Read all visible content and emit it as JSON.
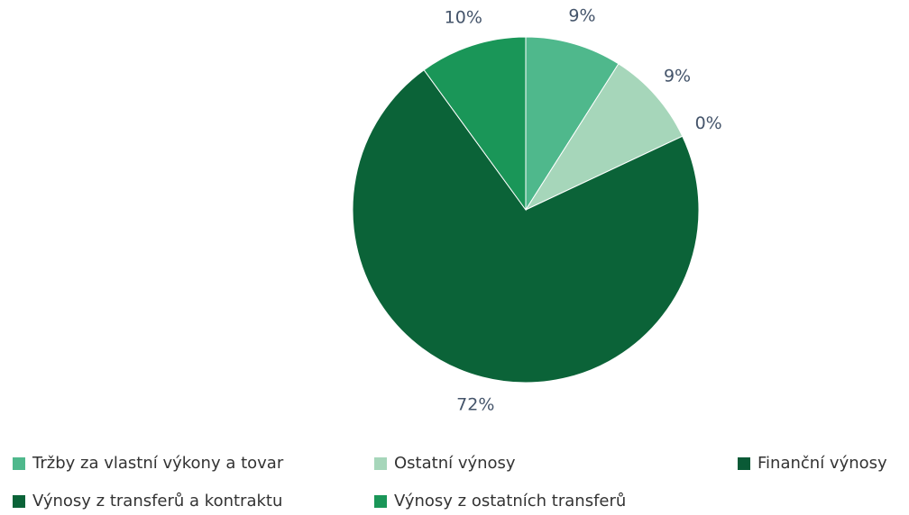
{
  "chart_data": {
    "type": "pie",
    "categories": [
      "Tržby za vlastní výkony a tovar",
      "Ostatní výnosy",
      "Finanční výnosy",
      "Výnosy z transferů a kontraktu",
      "Výnosy z ostatních transferů"
    ],
    "values": [
      9,
      9,
      0,
      72,
      10
    ],
    "value_labels": [
      "9%",
      "9%",
      "0%",
      "72%",
      "10%"
    ],
    "colors": [
      "#4fb88c",
      "#a6d6ba",
      "#0a5a36",
      "#0b6338",
      "#1a9658"
    ],
    "legend": "bottom"
  }
}
